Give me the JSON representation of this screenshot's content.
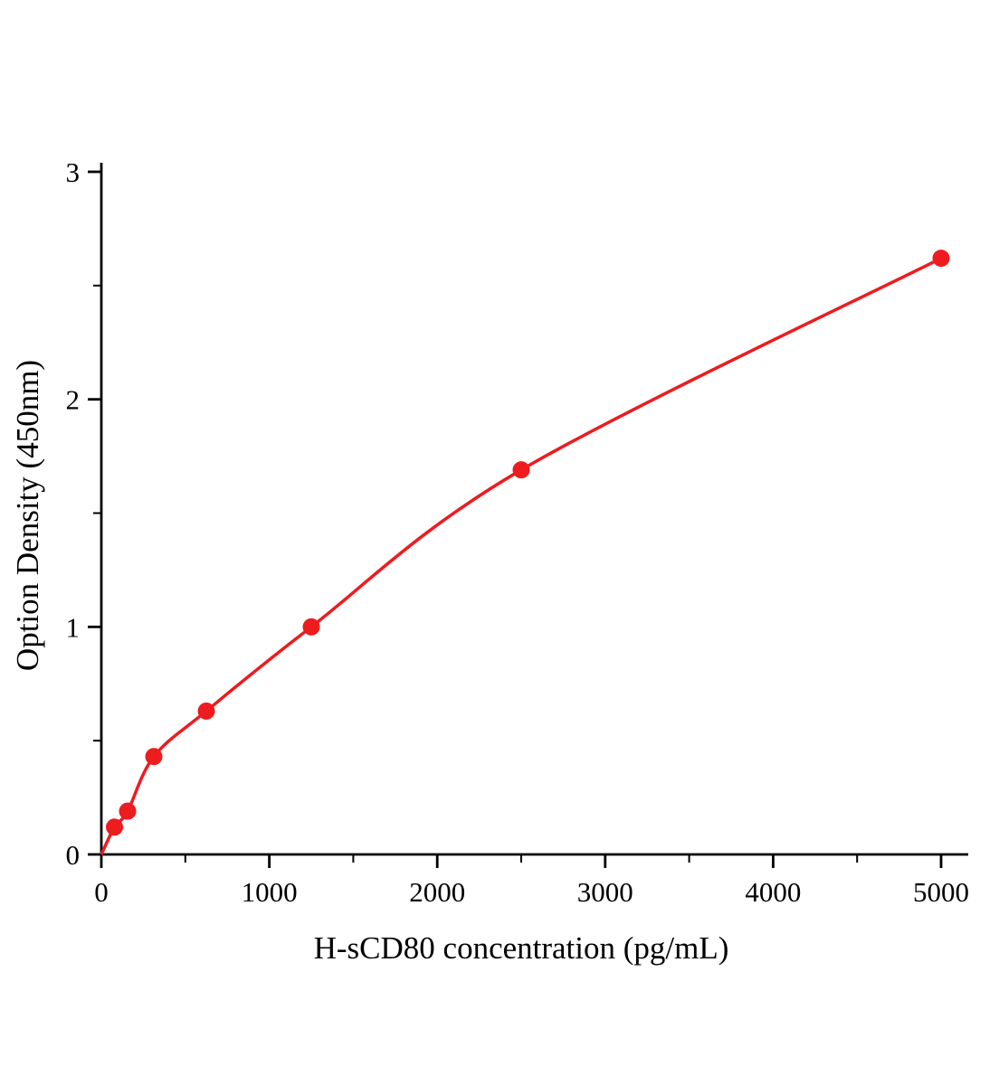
{
  "chart_data": {
    "type": "scatter",
    "subtype": "standard-curve-with-fitted-line",
    "title": "",
    "xlabel": "H-sCD80 concentration (pg/mL)",
    "ylabel": "Option Density (450nm)",
    "x": [
      78.13,
      156.25,
      312.5,
      625,
      1250,
      2500,
      5000
    ],
    "y": [
      0.12,
      0.19,
      0.43,
      0.63,
      1.0,
      1.69,
      2.62
    ],
    "curve_start": [
      0,
      0
    ],
    "xlim": [
      0,
      5000
    ],
    "ylim": [
      0,
      3
    ],
    "x_major_ticks": [
      0,
      1000,
      2000,
      3000,
      4000,
      5000
    ],
    "x_tick_labels": [
      "0",
      "1000",
      "2000",
      "3000",
      "4000",
      "5000"
    ],
    "x_minor_step": 500,
    "y_major_ticks": [
      0,
      1,
      2,
      3
    ],
    "y_tick_labels": [
      "0",
      "1",
      "2",
      "3"
    ],
    "y_minor_step": 0.5,
    "line_color": "#ee1b1f",
    "marker_color": "#ee1b1f",
    "axis_color": "#000000",
    "background": "#ffffff",
    "grid": false,
    "legend": null
  }
}
